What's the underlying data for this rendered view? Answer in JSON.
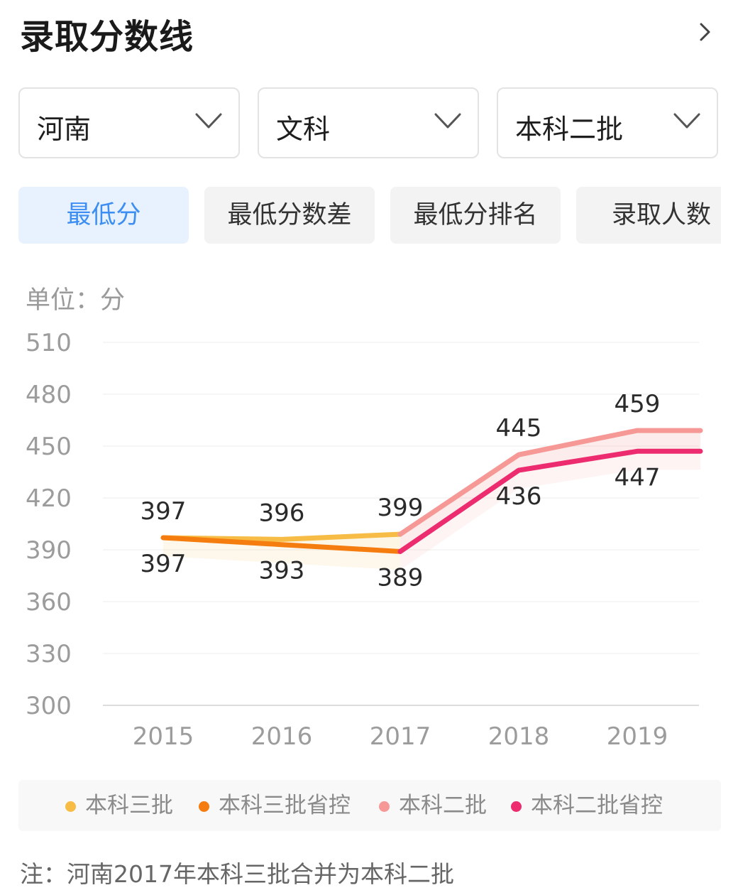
{
  "header": {
    "title": "录取分数线"
  },
  "filters": [
    {
      "label": "河南"
    },
    {
      "label": "文科"
    },
    {
      "label": "本科二批"
    }
  ],
  "tabs": [
    {
      "label": "最低分",
      "active": true
    },
    {
      "label": "最低分数差",
      "active": false
    },
    {
      "label": "最低分排名",
      "active": false
    },
    {
      "label": "录取人数",
      "active": false
    }
  ],
  "unit_label": "单位：分",
  "colors": {
    "accent": "#3d8ef2",
    "s1": "#f7bc45",
    "s2": "#f57d0f",
    "s3": "#f59896",
    "s4": "#ec2c6f"
  },
  "chart_data": {
    "type": "line",
    "x": [
      "2015",
      "2016",
      "2017",
      "2018",
      "2019"
    ],
    "ylim": [
      300,
      510
    ],
    "yticks": [
      "510",
      "480",
      "450",
      "420",
      "390",
      "360",
      "330",
      "300"
    ],
    "grid": true,
    "legend_position": "bottom",
    "series": [
      {
        "name": "本科三批",
        "values": [
          397,
          396,
          399,
          null,
          null
        ],
        "labels": [
          "397",
          "396",
          "399",
          "",
          ""
        ],
        "label_pos": "above"
      },
      {
        "name": "本科三批省控",
        "values": [
          397,
          393,
          389,
          null,
          null
        ],
        "labels": [
          "397",
          "393",
          "389",
          "",
          ""
        ],
        "label_pos": "below"
      },
      {
        "name": "本科二批",
        "values": [
          null,
          null,
          399,
          445,
          459
        ],
        "labels": [
          "",
          "",
          "",
          "445",
          "459"
        ],
        "label_pos": "above"
      },
      {
        "name": "本科二批省控",
        "values": [
          null,
          null,
          389,
          436,
          447
        ],
        "labels": [
          "",
          "",
          "",
          "436",
          "447"
        ],
        "label_pos": "below"
      }
    ]
  },
  "note": "注：河南2017年本科三批合并为本科二批"
}
